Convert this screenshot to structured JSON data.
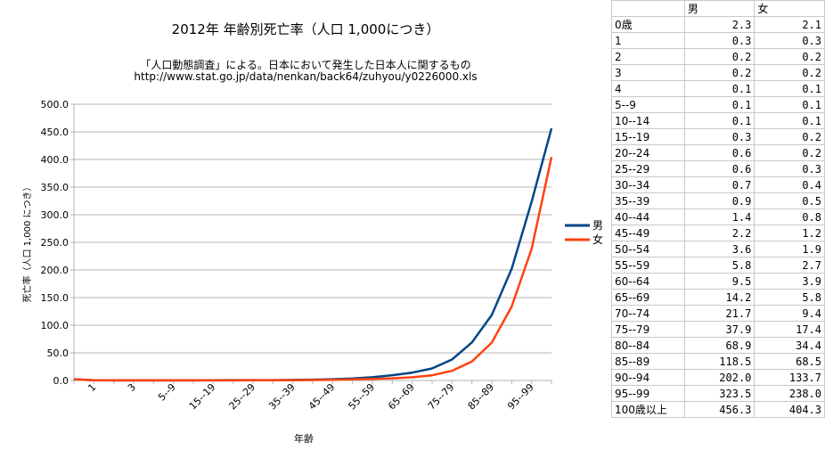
{
  "chart_data": {
    "type": "line",
    "title": "2012年 年齢別死亡率（人口 1,000につき）",
    "subtitle_lines": [
      "「人口動態調査」による。日本において発生した日本人に関するもの",
      "http://www.stat.go.jp/data/nenkan/back64/zuhyou/y0226000.xls"
    ],
    "xlabel": "年齢",
    "ylabel": "死亡率（人口 1,000 につき）",
    "ylim": [
      0,
      500
    ],
    "yticks": [
      "0.0",
      "50.0",
      "100.0",
      "150.0",
      "200.0",
      "250.0",
      "300.0",
      "350.0",
      "400.0",
      "450.0",
      "500.0"
    ],
    "categories": [
      "0歳",
      "1",
      "2",
      "3",
      "4",
      "5--9",
      "10--14",
      "15--19",
      "20--24",
      "25--29",
      "30--34",
      "35--39",
      "40--44",
      "45--49",
      "50--54",
      "55--59",
      "60--64",
      "65--69",
      "70--74",
      "75--79",
      "80--84",
      "85--89",
      "90--94",
      "95--99",
      "100歳以上"
    ],
    "xtick_labels": [
      "1",
      "3",
      "5--9",
      "15--19",
      "25--29",
      "35--39",
      "45--49",
      "55--59",
      "65--69",
      "75--79",
      "85--89",
      "95--99"
    ],
    "xtick_indices": [
      1,
      3,
      5,
      7,
      9,
      11,
      13,
      15,
      17,
      19,
      21,
      23
    ],
    "series": [
      {
        "name": "男",
        "color": "#004586",
        "values": [
          2.3,
          0.3,
          0.2,
          0.2,
          0.1,
          0.1,
          0.1,
          0.3,
          0.6,
          0.6,
          0.7,
          0.9,
          1.4,
          2.2,
          3.6,
          5.8,
          9.5,
          14.2,
          21.7,
          37.9,
          68.9,
          118.5,
          202.0,
          323.5,
          456.3
        ]
      },
      {
        "name": "女",
        "color": "#ff420e",
        "values": [
          2.1,
          0.3,
          0.2,
          0.2,
          0.1,
          0.1,
          0.1,
          0.2,
          0.2,
          0.3,
          0.4,
          0.5,
          0.8,
          1.2,
          1.9,
          2.7,
          3.9,
          5.8,
          9.4,
          17.4,
          34.4,
          68.5,
          133.7,
          238.0,
          404.3
        ]
      }
    ],
    "legend_position": "right",
    "grid": "horizontal"
  },
  "table": {
    "headers": [
      "",
      "男",
      "女"
    ],
    "rows": [
      [
        "0歳",
        "2.3",
        "2.1"
      ],
      [
        "1",
        "0.3",
        "0.3"
      ],
      [
        "2",
        "0.2",
        "0.2"
      ],
      [
        "3",
        "0.2",
        "0.2"
      ],
      [
        "4",
        "0.1",
        "0.1"
      ],
      [
        "5--9",
        "0.1",
        "0.1"
      ],
      [
        "10--14",
        "0.1",
        "0.1"
      ],
      [
        "15--19",
        "0.3",
        "0.2"
      ],
      [
        "20--24",
        "0.6",
        "0.2"
      ],
      [
        "25--29",
        "0.6",
        "0.3"
      ],
      [
        "30--34",
        "0.7",
        "0.4"
      ],
      [
        "35--39",
        "0.9",
        "0.5"
      ],
      [
        "40--44",
        "1.4",
        "0.8"
      ],
      [
        "45--49",
        "2.2",
        "1.2"
      ],
      [
        "50--54",
        "3.6",
        "1.9"
      ],
      [
        "55--59",
        "5.8",
        "2.7"
      ],
      [
        "60--64",
        "9.5",
        "3.9"
      ],
      [
        "65--69",
        "14.2",
        "5.8"
      ],
      [
        "70--74",
        "21.7",
        "9.4"
      ],
      [
        "75--79",
        "37.9",
        "17.4"
      ],
      [
        "80--84",
        "68.9",
        "34.4"
      ],
      [
        "85--89",
        "118.5",
        "68.5"
      ],
      [
        "90--94",
        "202.0",
        "133.7"
      ],
      [
        "95--99",
        "323.5",
        "238.0"
      ],
      [
        "100歳以上",
        "456.3",
        "404.3"
      ]
    ]
  }
}
